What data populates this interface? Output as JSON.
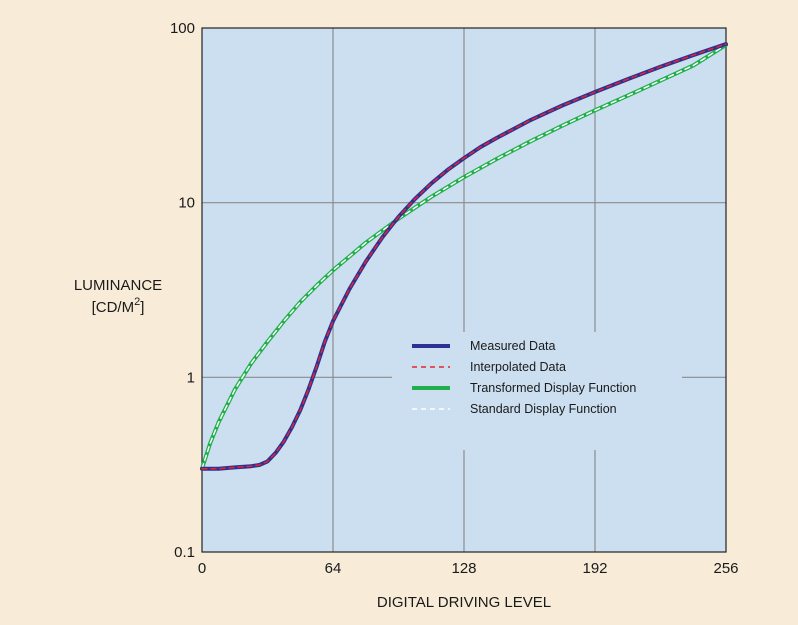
{
  "colors": {
    "page_background": "#f8ecd9",
    "plot_background": "#ccdff0",
    "gridline": "#8c8c8c",
    "measured": "#2e3192",
    "interpolated": "#e8232a",
    "transformed": "#1fb04b",
    "standard": "#ffffff"
  },
  "chart_data": {
    "type": "line",
    "title": "",
    "xlabel": "DIGITAL DRIVING LEVEL",
    "ylabel_main": "LUMINANCE",
    "ylabel_unit": "[CD/M",
    "ylabel_superscript": "2",
    "ylabel_close": "]",
    "xlim": [
      0,
      256
    ],
    "ylim": [
      0.1,
      100
    ],
    "y_scale": "log",
    "grid": true,
    "legend_position": "lower-right",
    "x_ticks": [
      0,
      64,
      128,
      192,
      256
    ],
    "x_tick_labels": [
      "0",
      "64",
      "128",
      "192",
      "256"
    ],
    "y_ticks": [
      0.1,
      1,
      10,
      100
    ],
    "y_tick_labels": [
      "0.1",
      "1",
      "10",
      "100"
    ],
    "series": [
      {
        "name": "Measured Data",
        "style": "solid-thick",
        "x": [
          0,
          8,
          16,
          24,
          28,
          32,
          36,
          40,
          44,
          48,
          52,
          56,
          60,
          64,
          72,
          80,
          88,
          96,
          104,
          112,
          120,
          128,
          136,
          144,
          160,
          176,
          192,
          208,
          224,
          240,
          256
        ],
        "y": [
          0.3,
          0.3,
          0.305,
          0.31,
          0.315,
          0.33,
          0.37,
          0.43,
          0.52,
          0.65,
          0.85,
          1.15,
          1.6,
          2.1,
          3.2,
          4.6,
          6.3,
          8.3,
          10.5,
          12.9,
          15.4,
          18,
          20.8,
          23.5,
          29.5,
          36,
          43,
          51,
          60,
          70,
          81
        ]
      },
      {
        "name": "Interpolated Data",
        "style": "dashed-thin",
        "x": [
          0,
          8,
          16,
          24,
          28,
          32,
          36,
          40,
          44,
          48,
          52,
          56,
          60,
          64,
          72,
          80,
          88,
          96,
          104,
          112,
          120,
          128,
          136,
          144,
          160,
          176,
          192,
          208,
          224,
          240,
          256
        ],
        "y": [
          0.3,
          0.3,
          0.305,
          0.31,
          0.315,
          0.33,
          0.37,
          0.43,
          0.52,
          0.65,
          0.85,
          1.15,
          1.6,
          2.1,
          3.2,
          4.6,
          6.3,
          8.3,
          10.5,
          12.9,
          15.4,
          18,
          20.8,
          23.5,
          29.5,
          36,
          43,
          51,
          60,
          70,
          81
        ]
      },
      {
        "name": "Transformed Display Function",
        "style": "solid-thick",
        "x": [
          0,
          4,
          8,
          16,
          24,
          32,
          40,
          48,
          56,
          64,
          80,
          96,
          112,
          128,
          144,
          160,
          176,
          192,
          208,
          224,
          240,
          256
        ],
        "y": [
          0.3,
          0.42,
          0.55,
          0.85,
          1.2,
          1.6,
          2.1,
          2.7,
          3.35,
          4.1,
          5.9,
          8.1,
          10.8,
          14,
          17.8,
          22.3,
          27.6,
          33.8,
          41,
          50,
          61,
          80
        ]
      },
      {
        "name": "Standard Display Function",
        "style": "dashed-thin",
        "x": [
          0,
          4,
          8,
          16,
          24,
          32,
          40,
          48,
          56,
          64,
          80,
          96,
          112,
          128,
          144,
          160,
          176,
          192,
          208,
          224,
          240,
          256
        ],
        "y": [
          0.3,
          0.42,
          0.55,
          0.85,
          1.2,
          1.6,
          2.1,
          2.7,
          3.35,
          4.1,
          5.9,
          8.1,
          10.8,
          14,
          17.8,
          22.3,
          27.6,
          33.8,
          41,
          50,
          61,
          80
        ]
      }
    ]
  }
}
